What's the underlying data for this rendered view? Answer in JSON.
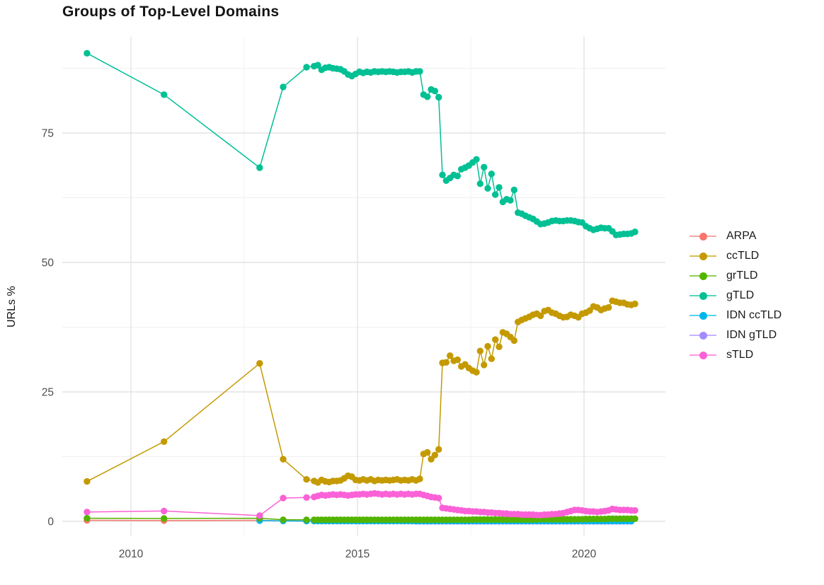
{
  "chart_data": {
    "type": "line",
    "title": "Groups of Top-Level Domains",
    "xlabel": "",
    "ylabel": "URLs %",
    "x_ticks": [
      2010,
      2015,
      2020
    ],
    "x_tick_labels": [
      "2010",
      "2015",
      "2020"
    ],
    "x_minor_ticks": [
      2012.5,
      2017.5
    ],
    "y_ticks": [
      0,
      25,
      50,
      75
    ],
    "y_tick_labels": [
      "0",
      "25",
      "50",
      "75"
    ],
    "y_minor_ticks": [
      12.5,
      37.5,
      62.5,
      87.5
    ],
    "xlim": [
      2008.5,
      2021.8
    ],
    "ylim": [
      -1.5,
      93.5
    ],
    "grid": "on",
    "legend_position": "right",
    "colors": {
      "grid_major": "#e3e3e3",
      "grid_minor": "#efefef",
      "tick_label": "#4d4d4d",
      "text": "#1a1a1a",
      "background": "#ffffff"
    },
    "monthly_x": [
      2014.042,
      2014.125,
      2014.208,
      2014.292,
      2014.375,
      2014.458,
      2014.542,
      2014.625,
      2014.708,
      2014.792,
      2014.875,
      2014.958,
      2015.042,
      2015.125,
      2015.208,
      2015.292,
      2015.375,
      2015.458,
      2015.542,
      2015.625,
      2015.708,
      2015.792,
      2015.875,
      2015.958,
      2016.042,
      2016.125,
      2016.208,
      2016.292,
      2016.375,
      2016.458,
      2016.542,
      2016.625,
      2016.708,
      2016.792,
      2016.875,
      2016.958,
      2017.042,
      2017.125,
      2017.208,
      2017.292,
      2017.375,
      2017.458,
      2017.542,
      2017.625,
      2017.708,
      2017.792,
      2017.875,
      2017.958,
      2018.042,
      2018.125,
      2018.208,
      2018.292,
      2018.375,
      2018.458,
      2018.542,
      2018.625,
      2018.708,
      2018.792,
      2018.875,
      2018.958,
      2019.042,
      2019.125,
      2019.208,
      2019.292,
      2019.375,
      2019.458,
      2019.542,
      2019.625,
      2019.708,
      2019.792,
      2019.875,
      2019.958,
      2020.042,
      2020.125,
      2020.208,
      2020.292,
      2020.375,
      2020.458,
      2020.542,
      2020.625,
      2020.708,
      2020.792,
      2020.875,
      2020.958,
      2021.042,
      2021.125
    ],
    "series": [
      {
        "name": "ARPA",
        "color": "#F8766D",
        "pre": [
          [
            2009.03,
            0.2
          ],
          [
            2010.73,
            0.15
          ],
          [
            2012.84,
            0.2
          ],
          [
            2013.36,
            0.1
          ],
          [
            2013.875,
            0.05
          ]
        ],
        "flat": {
          "from": 2014.042,
          "to": 2021.125,
          "value": 0.05
        }
      },
      {
        "name": "ccTLD",
        "color": "#C49A00",
        "pre": [
          [
            2009.03,
            7.7
          ],
          [
            2010.73,
            15.4
          ],
          [
            2012.84,
            30.5
          ],
          [
            2013.36,
            12.0
          ],
          [
            2013.875,
            8.1
          ]
        ],
        "monthly_start": 0,
        "monthly_y": [
          7.8,
          7.5,
          8.0,
          7.7,
          7.6,
          7.8,
          7.8,
          7.9,
          8.3,
          8.8,
          8.6,
          8.0,
          7.9,
          8.1,
          7.9,
          8.1,
          7.8,
          8.0,
          7.9,
          8.0,
          7.9,
          8.0,
          8.1,
          7.9,
          8.0,
          7.9,
          8.1,
          7.9,
          8.2,
          13.0,
          13.3,
          12.0,
          12.8,
          13.9,
          30.6,
          30.7,
          32.0,
          31.0,
          31.2,
          29.9,
          30.3,
          29.6,
          29.1,
          28.8,
          32.9,
          30.2,
          33.8,
          31.4,
          35.1,
          33.7,
          36.5,
          36.2,
          35.6,
          34.9,
          38.5,
          38.9,
          39.2,
          39.5,
          39.9,
          40.1,
          39.7,
          40.6,
          40.8,
          40.3,
          40.1,
          39.7,
          39.4,
          39.5,
          39.9,
          39.7,
          39.4,
          40.1,
          40.3,
          40.7,
          41.5,
          41.3,
          40.8,
          41.1,
          41.3,
          42.6,
          42.4,
          42.2,
          42.2,
          41.9,
          41.8,
          42.0
        ]
      },
      {
        "name": "grTLD",
        "color": "#53B400",
        "pre": [
          [
            2009.03,
            0.6
          ],
          [
            2010.73,
            0.55
          ],
          [
            2012.84,
            0.6
          ],
          [
            2013.36,
            0.3
          ],
          [
            2013.875,
            0.3
          ]
        ],
        "monthly_start": 0,
        "monthly_y": [
          0.3,
          0.3,
          0.3,
          0.3,
          0.3,
          0.3,
          0.3,
          0.3,
          0.3,
          0.3,
          0.3,
          0.3,
          0.3,
          0.3,
          0.3,
          0.3,
          0.3,
          0.3,
          0.3,
          0.3,
          0.3,
          0.3,
          0.3,
          0.3,
          0.3,
          0.3,
          0.3,
          0.3,
          0.3,
          0.3,
          0.3,
          0.3,
          0.3,
          0.3,
          0.3,
          0.3,
          0.3,
          0.3,
          0.3,
          0.3,
          0.3,
          0.3,
          0.35,
          0.35,
          0.35,
          0.35,
          0.35,
          0.35,
          0.35,
          0.35,
          0.35,
          0.35,
          0.35,
          0.35,
          0.35,
          0.35,
          0.35,
          0.35,
          0.35,
          0.35,
          0.4,
          0.4,
          0.4,
          0.4,
          0.4,
          0.4,
          0.4,
          0.4,
          0.4,
          0.4,
          0.4,
          0.4,
          0.45,
          0.45,
          0.45,
          0.45,
          0.45,
          0.45,
          0.5,
          0.5,
          0.5,
          0.5,
          0.5,
          0.5,
          0.5,
          0.5
        ]
      },
      {
        "name": "gTLD",
        "color": "#00C094",
        "pre": [
          [
            2009.03,
            90.4
          ],
          [
            2010.73,
            82.4
          ],
          [
            2012.84,
            68.3
          ],
          [
            2013.36,
            83.9
          ],
          [
            2013.875,
            87.7
          ]
        ],
        "monthly_start": 0,
        "monthly_y": [
          87.9,
          88.1,
          87.2,
          87.6,
          87.7,
          87.5,
          87.4,
          87.3,
          86.9,
          86.3,
          86.0,
          86.4,
          86.8,
          86.6,
          86.8,
          86.7,
          86.9,
          86.8,
          86.9,
          86.8,
          86.9,
          86.8,
          86.7,
          86.8,
          86.8,
          86.9,
          86.7,
          86.9,
          86.9,
          82.4,
          82.0,
          83.4,
          83.1,
          81.9,
          66.9,
          65.8,
          66.3,
          66.9,
          66.7,
          68.0,
          68.3,
          68.7,
          69.3,
          69.9,
          65.2,
          68.4,
          64.3,
          67.1,
          63.1,
          64.5,
          61.7,
          62.2,
          62.0,
          64.0,
          59.6,
          59.4,
          59.0,
          58.7,
          58.4,
          57.9,
          57.4,
          57.5,
          57.7,
          58.0,
          58.1,
          58.0,
          58.0,
          58.1,
          58.1,
          58.0,
          57.8,
          57.7,
          57.0,
          56.6,
          56.3,
          56.5,
          56.7,
          56.6,
          56.6,
          56.0,
          55.3,
          55.4,
          55.5,
          55.5,
          55.6,
          55.9
        ]
      },
      {
        "name": "IDN ccTLD",
        "color": "#00B6EB",
        "pre": [
          [
            2012.84,
            0.15
          ],
          [
            2013.36,
            0.08
          ],
          [
            2013.875,
            0.06
          ]
        ],
        "flat": {
          "from": 2014.042,
          "to": 2021.125,
          "value": 0.06
        }
      },
      {
        "name": "IDN gTLD",
        "color": "#A58AFF",
        "pre": [],
        "flat": {
          "from": 2016.292,
          "to": 2021.125,
          "value": 0.02
        }
      },
      {
        "name": "sTLD",
        "color": "#FB61D7",
        "pre": [
          [
            2009.03,
            1.8
          ],
          [
            2010.73,
            2.0
          ],
          [
            2012.84,
            1.1
          ],
          [
            2013.36,
            4.5
          ],
          [
            2013.875,
            4.6
          ]
        ],
        "monthly_start": 0,
        "monthly_y": [
          4.7,
          4.9,
          5.1,
          5.0,
          5.1,
          5.2,
          5.1,
          5.2,
          5.1,
          5.0,
          5.1,
          5.2,
          5.2,
          5.3,
          5.2,
          5.3,
          5.4,
          5.3,
          5.2,
          5.3,
          5.2,
          5.3,
          5.2,
          5.3,
          5.2,
          5.3,
          5.2,
          5.3,
          5.3,
          5.1,
          4.9,
          4.7,
          4.6,
          4.5,
          2.6,
          2.5,
          2.4,
          2.3,
          2.2,
          2.1,
          2.0,
          2.0,
          1.9,
          1.9,
          1.8,
          1.8,
          1.7,
          1.7,
          1.6,
          1.6,
          1.5,
          1.5,
          1.4,
          1.4,
          1.4,
          1.3,
          1.3,
          1.3,
          1.3,
          1.2,
          1.2,
          1.3,
          1.3,
          1.4,
          1.4,
          1.5,
          1.6,
          1.8,
          2.0,
          2.2,
          2.2,
          2.1,
          2.0,
          1.9,
          1.9,
          1.8,
          1.9,
          2.0,
          2.1,
          2.4,
          2.3,
          2.2,
          2.2,
          2.2,
          2.1,
          2.1
        ]
      }
    ],
    "draw_order": [
      "ARPA",
      "IDN gTLD",
      "IDN ccTLD",
      "grTLD",
      "ccTLD",
      "gTLD",
      "sTLD"
    ]
  }
}
